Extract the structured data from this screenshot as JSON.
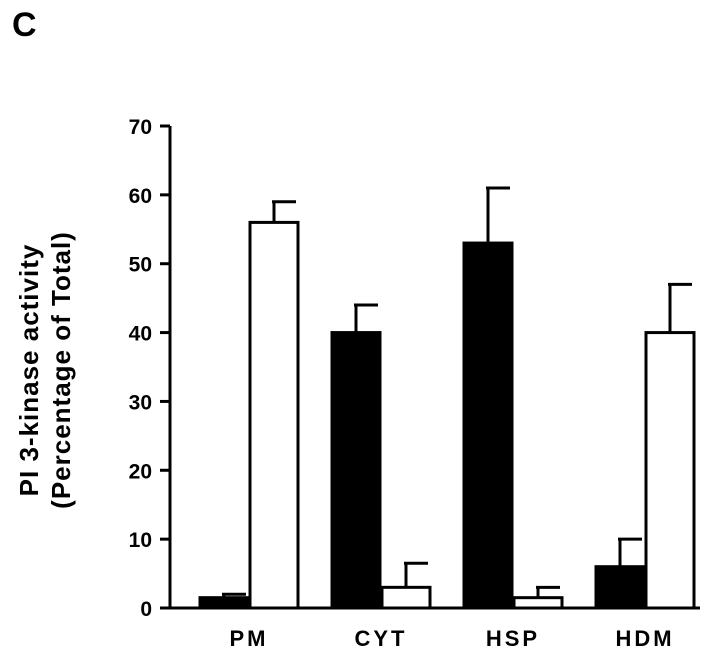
{
  "panel_label": "C",
  "chart_data": {
    "type": "bar",
    "categories": [
      "PM",
      "CYT",
      "HSP",
      "HDM"
    ],
    "series": [
      {
        "fill": "#000000",
        "values": [
          1.5,
          40,
          53,
          6
        ],
        "errors": [
          0.5,
          4,
          8,
          4
        ]
      },
      {
        "fill": "#ffffff",
        "values": [
          56,
          3,
          1.5,
          40
        ],
        "errors": [
          3,
          3.5,
          1.5,
          7
        ]
      }
    ],
    "ylabel_line1": "PI 3-kinase activity",
    "ylabel_line2": "(Percentage of Total)",
    "ylim": [
      0,
      70
    ],
    "yticks": [
      0,
      10,
      20,
      30,
      40,
      50,
      60,
      70
    ],
    "grid": false
  }
}
